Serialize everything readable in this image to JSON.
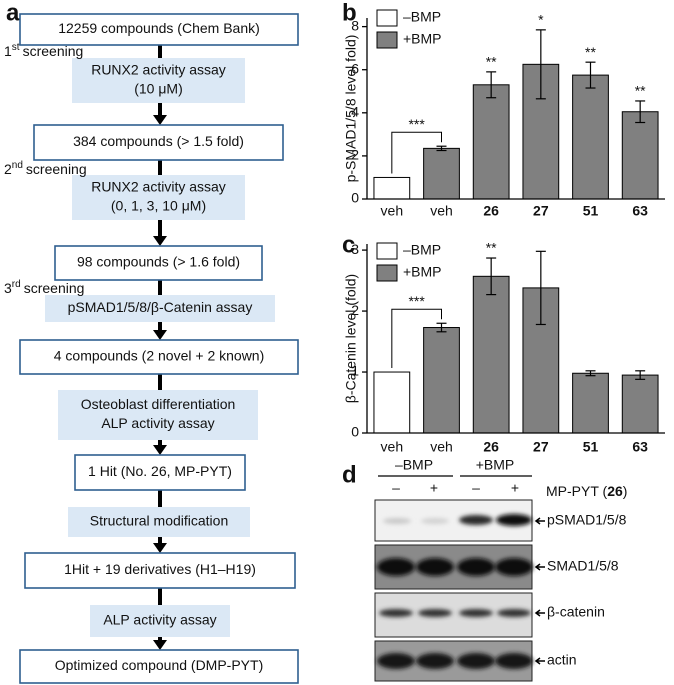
{
  "panels": [
    "a",
    "b",
    "c",
    "d"
  ],
  "flowchart": {
    "results": [
      "12259 compounds (Chem Bank)",
      "384 compounds (> 1.5 fold)",
      "98 compounds (> 1.6 fold)",
      "4 compounds (2 novel + 2 known)",
      "1 Hit (No. 26, MP-PYT)",
      "1Hit + 19 derivatives (H1–H19)",
      "Optimized compound (DMP-PYT)"
    ],
    "assays": [
      [
        "RUNX2 activity assay",
        "(10 μM)"
      ],
      [
        "RUNX2 activity assay",
        "(0, 1, 3, 10 μM)"
      ],
      [
        "pSMAD1/5/8/β-Catenin assay"
      ],
      [
        "Osteoblast differentiation",
        "ALP activity assay"
      ],
      [
        "Structural modification"
      ],
      [
        "ALP activity assay"
      ]
    ],
    "screenings": [
      {
        "number": "1",
        "ordinal": "st",
        "label": "screening"
      },
      {
        "number": "2",
        "ordinal": "nd",
        "label": "screening"
      },
      {
        "number": "3",
        "ordinal": "rd",
        "label": "screening"
      }
    ]
  },
  "chart_data": [
    {
      "type": "bar",
      "y_label": "p-SMAD1/5/8 level fold)",
      "categories": [
        "veh",
        "veh",
        "26",
        "27",
        "51",
        "63"
      ],
      "series": [
        {
          "name": "–BMP",
          "color": "#ffffff",
          "values": [
            1.0,
            null,
            null,
            null,
            null,
            null
          ],
          "errors": [
            null,
            null,
            null,
            null,
            null,
            null
          ]
        },
        {
          "name": "+BMP",
          "color": "#808080",
          "values": [
            null,
            2.35,
            5.3,
            6.25,
            5.75,
            4.05
          ],
          "errors": [
            null,
            0.1,
            0.6,
            1.6,
            0.6,
            0.5
          ]
        }
      ],
      "significance": [
        null,
        "***",
        "**",
        "*",
        "**",
        "**"
      ],
      "ylim": [
        0,
        8.4
      ],
      "yticks": [
        0,
        2,
        4,
        6,
        8
      ]
    },
    {
      "type": "bar",
      "y_label": "β-Catenin level (fold)",
      "categories": [
        "veh",
        "veh",
        "26",
        "27",
        "51",
        "63"
      ],
      "series": [
        {
          "name": "–BMP",
          "color": "#ffffff",
          "values": [
            1.0,
            null,
            null,
            null,
            null,
            null
          ],
          "errors": [
            null,
            null,
            null,
            null,
            null,
            null
          ]
        },
        {
          "name": "+BMP",
          "color": "#808080",
          "values": [
            null,
            1.73,
            2.57,
            2.38,
            0.98,
            0.95
          ],
          "errors": [
            null,
            0.07,
            0.3,
            0.6,
            0.04,
            0.07
          ]
        }
      ],
      "significance": [
        null,
        "***",
        "**",
        null,
        null,
        null
      ],
      "ylim": [
        0,
        3.1
      ],
      "yticks": [
        0,
        1,
        2,
        3
      ]
    }
  ],
  "blot": {
    "groups": [
      "–BMP",
      "+BMP"
    ],
    "treatment_signs": [
      "–",
      "+",
      "–",
      "+"
    ],
    "treatment_label": [
      "MP-PYT (",
      "26",
      ")"
    ],
    "bands": [
      "pSMAD1/5/8",
      "SMAD1/5/8",
      "β-catenin",
      "actin"
    ]
  }
}
